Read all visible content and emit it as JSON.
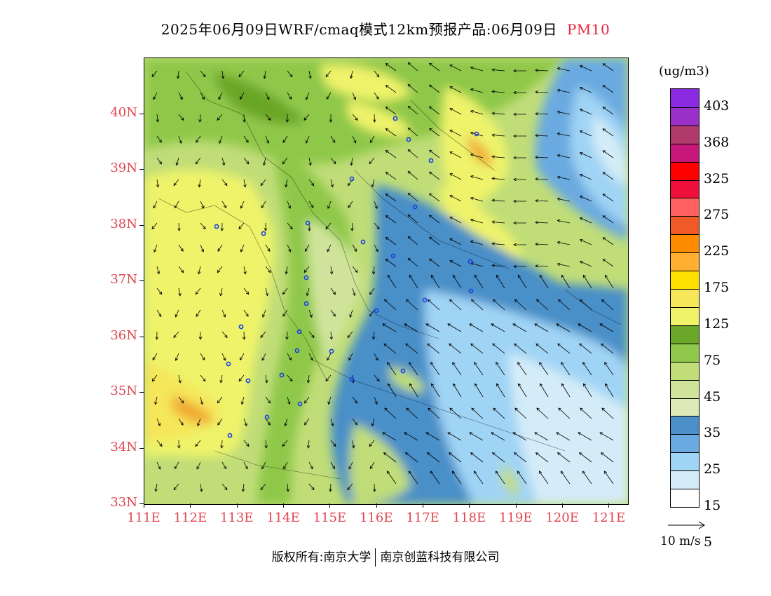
{
  "title": {
    "main": "2025年06月09日WRF/cmaq模式12km预报产品:06月09日",
    "pollutant": "PM10"
  },
  "map": {
    "lat_labels": [
      "40N",
      "39N",
      "38N",
      "37N",
      "36N",
      "35N",
      "34N",
      "33N"
    ],
    "lon_labels": [
      "111E",
      "112E",
      "113E",
      "114E",
      "115E",
      "116E",
      "117E",
      "118E",
      "119E",
      "120E",
      "121E"
    ],
    "lat_values": [
      40,
      39,
      38,
      37,
      36,
      35,
      34,
      33
    ],
    "lon_values": [
      111,
      112,
      113,
      114,
      115,
      116,
      117,
      118,
      119,
      120,
      121
    ],
    "city_marker_color": "#1a3fe0",
    "label_color": "#e2454f"
  },
  "legend": {
    "unit": "(ug/m3)",
    "labels": [
      "403",
      "368",
      "325",
      "275",
      "225",
      "175",
      "125",
      "75",
      "45",
      "35",
      "25",
      "15",
      "5"
    ],
    "colors": [
      "#8a2be2",
      "#9b30c8",
      "#b03a6a",
      "#c8177a",
      "#ff0000",
      "#f0103c",
      "#ff6060",
      "#f05a28",
      "#ff8c00",
      "#ffb030",
      "#ffe000",
      "#f5e65a",
      "#eef36a",
      "#6aa628",
      "#8fc84a",
      "#c0dd78",
      "#cfe49a",
      "#dde9b8",
      "#4a8fc8",
      "#6aaae0",
      "#a0d4f5",
      "#d4ecf8",
      "#ffffff"
    ]
  },
  "wind": {
    "reference": "10 m/s"
  },
  "footer": {
    "copyright": "版权所有:南京大学",
    "company": "南京创蓝科技有限公司"
  }
}
